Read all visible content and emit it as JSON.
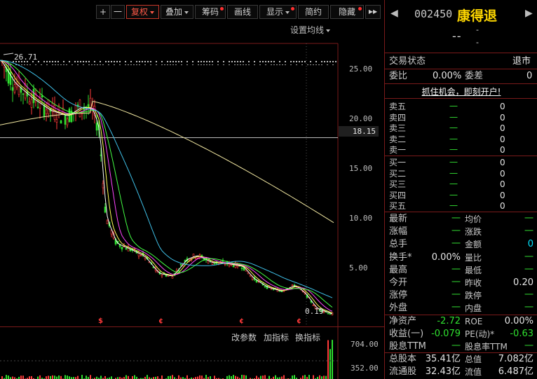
{
  "toolbar": {
    "plus": "+",
    "minus": "一",
    "fuquan": "复权",
    "diejia": "叠加",
    "chouma": "筹码",
    "huaxian": "画线",
    "xianshi": "显示",
    "jianyue": "简约",
    "yincang": "隐藏",
    "more": "▶▶"
  },
  "chart": {
    "ma_setting": "设置均线",
    "high_label": "26.71",
    "low_label": "0.19",
    "current_price_axis": "18.15",
    "y_ticks": [
      "25.00",
      "20.00",
      "15.00",
      "10.00",
      "5.00"
    ],
    "signal_marks": [
      "$",
      "¢",
      "¢",
      "¢"
    ],
    "indicator_buttons": {
      "params": "改参数",
      "add": "加指标",
      "switch": "换指标"
    },
    "volume_ticks": [
      "704.00",
      "352.00"
    ]
  },
  "quote": {
    "code": "002450",
    "name": "康得退",
    "price": "--",
    "change_top": "-",
    "change_bottom": "-",
    "status_label": "交易状态",
    "status_value": "退市",
    "weibi_label": "委比",
    "weibi_value": "0.00%",
    "weicha_label": "委差",
    "weicha_value": "0",
    "promo": "抓住机会，即刻开户!",
    "sell": [
      {
        "label": "卖五",
        "price": "一",
        "vol": "0"
      },
      {
        "label": "卖四",
        "price": "一",
        "vol": "0"
      },
      {
        "label": "卖三",
        "price": "一",
        "vol": "0"
      },
      {
        "label": "卖二",
        "price": "一",
        "vol": "0"
      },
      {
        "label": "卖一",
        "price": "一",
        "vol": "0"
      }
    ],
    "buy": [
      {
        "label": "买一",
        "price": "一",
        "vol": "0"
      },
      {
        "label": "买二",
        "price": "一",
        "vol": "0"
      },
      {
        "label": "买三",
        "price": "一",
        "vol": "0"
      },
      {
        "label": "买四",
        "price": "一",
        "vol": "0"
      },
      {
        "label": "买五",
        "price": "一",
        "vol": "0"
      }
    ],
    "stats": [
      {
        "l1": "最新",
        "v1": "一",
        "l2": "均价",
        "v2": "一"
      },
      {
        "l1": "涨幅",
        "v1": "一",
        "l2": "涨跌",
        "v2": "一"
      },
      {
        "l1": "总手",
        "v1": "一",
        "l2": "金额",
        "v2": "0"
      },
      {
        "l1": "换手*",
        "v1": "0.00%",
        "l2": "量比",
        "v2": "一"
      },
      {
        "l1": "最高",
        "v1": "一",
        "l2": "最低",
        "v2": "一"
      },
      {
        "l1": "今开",
        "v1": "一",
        "l2": "昨收",
        "v2": "0.20"
      },
      {
        "l1": "涨停",
        "v1": "一",
        "l2": "跌停",
        "v2": "一"
      },
      {
        "l1": "外盘",
        "v1": "一",
        "l2": "内盘",
        "v2": "一"
      },
      {
        "l1": "净资产",
        "v1": "-2.72",
        "l2": "ROE",
        "v2": "0.00%"
      },
      {
        "l1": "收益(一)",
        "v1": "-0.079",
        "l2": "PE(动)*",
        "v2": "-0.63"
      },
      {
        "l1": "股息TTM",
        "v1": "一",
        "l2": "股息率TTM",
        "v2": "一"
      },
      {
        "l1": "总股本",
        "v1": "35.41亿",
        "l2": "总值",
        "v2": "7.082亿"
      },
      {
        "l1": "流通股",
        "v1": "32.43亿",
        "l2": "流值",
        "v2": "6.487亿"
      }
    ]
  },
  "colors": {
    "up": "#ff3a3a",
    "down": "#2fe02f",
    "ma5": "#ffffff",
    "ma10": "#ffff55",
    "ma20": "#ff44ff",
    "ma30": "#44ff44",
    "ma60": "#3fc0e8",
    "ma120": "#f0e6a0",
    "brand": "#ffd800"
  }
}
